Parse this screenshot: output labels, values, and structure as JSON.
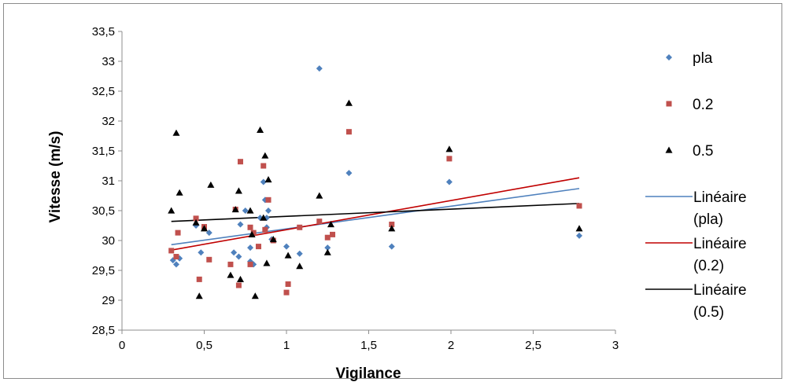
{
  "chart_data": {
    "type": "scatter",
    "xlabel": "Vigilance",
    "ylabel": "Vitesse (m/s)",
    "xlim": [
      0,
      3
    ],
    "ylim": [
      28.5,
      33.5
    ],
    "x_ticks": [
      "0",
      "0,5",
      "1",
      "1,5",
      "2",
      "2,5",
      "3"
    ],
    "y_ticks": [
      "28,5",
      "29",
      "29,5",
      "30",
      "30,5",
      "31",
      "31,5",
      "32",
      "32,5",
      "33",
      "33,5"
    ],
    "grid": false,
    "legend_position": "right",
    "series": [
      {
        "name": "pla",
        "marker": "diamond",
        "color": "#4f81bd",
        "points": [
          [
            0.31,
            29.67
          ],
          [
            0.33,
            29.6
          ],
          [
            0.35,
            29.7
          ],
          [
            0.45,
            30.25
          ],
          [
            0.48,
            29.8
          ],
          [
            0.53,
            30.13
          ],
          [
            0.68,
            29.8
          ],
          [
            0.71,
            29.73
          ],
          [
            0.72,
            30.27
          ],
          [
            0.75,
            30.5
          ],
          [
            0.78,
            29.88
          ],
          [
            0.78,
            29.65
          ],
          [
            0.8,
            29.6
          ],
          [
            0.84,
            30.38
          ],
          [
            0.86,
            30.98
          ],
          [
            0.87,
            30.68
          ],
          [
            0.88,
            30.38
          ],
          [
            0.88,
            30.22
          ],
          [
            0.89,
            30.5
          ],
          [
            0.91,
            30.02
          ],
          [
            1.0,
            29.9
          ],
          [
            1.08,
            29.78
          ],
          [
            1.2,
            32.88
          ],
          [
            1.25,
            29.88
          ],
          [
            1.38,
            31.13
          ],
          [
            1.64,
            29.9
          ],
          [
            1.99,
            30.98
          ],
          [
            2.78,
            30.08
          ]
        ]
      },
      {
        "name": "0.2",
        "marker": "square",
        "color": "#c0504d",
        "points": [
          [
            0.3,
            29.83
          ],
          [
            0.33,
            29.73
          ],
          [
            0.34,
            30.13
          ],
          [
            0.45,
            30.37
          ],
          [
            0.47,
            29.35
          ],
          [
            0.5,
            30.23
          ],
          [
            0.53,
            29.68
          ],
          [
            0.66,
            29.6
          ],
          [
            0.69,
            30.52
          ],
          [
            0.71,
            29.25
          ],
          [
            0.72,
            31.32
          ],
          [
            0.78,
            30.22
          ],
          [
            0.78,
            29.6
          ],
          [
            0.8,
            30.13
          ],
          [
            0.83,
            29.9
          ],
          [
            0.86,
            31.25
          ],
          [
            0.87,
            30.18
          ],
          [
            0.89,
            30.68
          ],
          [
            0.92,
            30.0
          ],
          [
            1.0,
            29.13
          ],
          [
            1.01,
            29.27
          ],
          [
            1.08,
            30.22
          ],
          [
            1.2,
            30.32
          ],
          [
            1.25,
            30.05
          ],
          [
            1.28,
            30.1
          ],
          [
            1.38,
            31.82
          ],
          [
            1.64,
            30.27
          ],
          [
            1.99,
            31.37
          ],
          [
            2.78,
            30.58
          ]
        ]
      },
      {
        "name": "0.5",
        "marker": "triangle",
        "color": "#000000",
        "points": [
          [
            0.3,
            30.5
          ],
          [
            0.33,
            31.8
          ],
          [
            0.35,
            30.8
          ],
          [
            0.45,
            30.3
          ],
          [
            0.47,
            29.07
          ],
          [
            0.5,
            30.2
          ],
          [
            0.54,
            30.93
          ],
          [
            0.66,
            29.42
          ],
          [
            0.69,
            30.52
          ],
          [
            0.71,
            30.83
          ],
          [
            0.72,
            29.35
          ],
          [
            0.78,
            30.5
          ],
          [
            0.79,
            30.1
          ],
          [
            0.81,
            29.07
          ],
          [
            0.84,
            31.85
          ],
          [
            0.86,
            30.38
          ],
          [
            0.87,
            31.42
          ],
          [
            0.88,
            29.62
          ],
          [
            0.89,
            31.02
          ],
          [
            0.92,
            30.02
          ],
          [
            1.01,
            29.75
          ],
          [
            1.08,
            29.57
          ],
          [
            1.2,
            30.75
          ],
          [
            1.25,
            29.8
          ],
          [
            1.27,
            30.27
          ],
          [
            1.38,
            32.3
          ],
          [
            1.64,
            30.2
          ],
          [
            1.99,
            31.53
          ],
          [
            2.78,
            30.2
          ]
        ]
      }
    ],
    "trendlines": [
      {
        "name": "Linéaire (pla)",
        "name_lines": [
          "Linéaire",
          "(pla)"
        ],
        "color": "#4f81bd",
        "x": [
          0.3,
          2.78
        ],
        "y": [
          29.93,
          30.87
        ]
      },
      {
        "name": "Linéaire (0.2)",
        "name_lines": [
          "Linéaire",
          "(0.2)"
        ],
        "color": "#c00000",
        "x": [
          0.3,
          2.78
        ],
        "y": [
          29.84,
          31.05
        ]
      },
      {
        "name": "Linéaire (0.5)",
        "name_lines": [
          "Linéaire",
          "(0.5)"
        ],
        "color": "#000000",
        "x": [
          0.3,
          2.78
        ],
        "y": [
          30.32,
          30.62
        ]
      }
    ]
  }
}
